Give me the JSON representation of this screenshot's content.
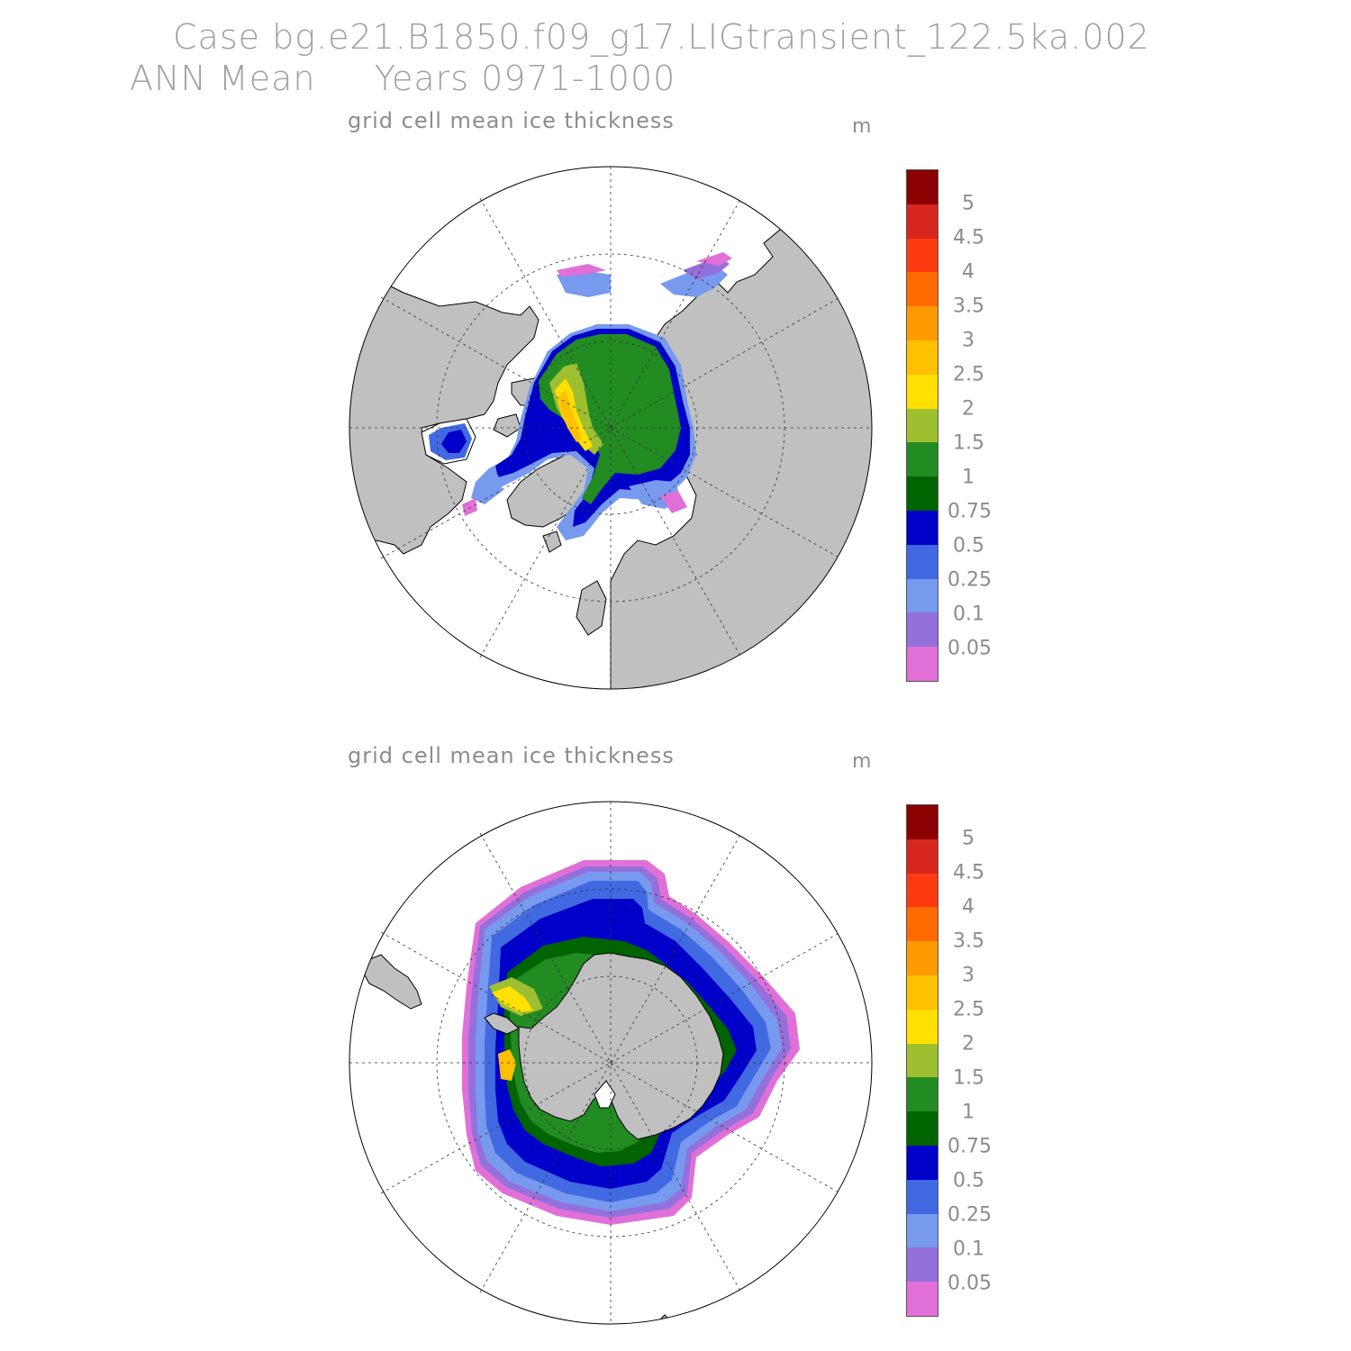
{
  "header": {
    "case_line": "Case bg.e21.B1850.f09_g17.LIGtransient_122.5ka.002",
    "period_line": "ANN Mean     Years 0971-1000"
  },
  "panels": [
    {
      "title": "grid cell mean ice thickness",
      "unit": "m"
    },
    {
      "title": "grid cell mean ice thickness",
      "unit": "m"
    }
  ],
  "colorbar": {
    "labels": [
      "5",
      "4.5",
      "4",
      "3.5",
      "3",
      "2.5",
      "2",
      "1.5",
      "1",
      "0.75",
      "0.5",
      "0.25",
      "0.1",
      "0.05"
    ],
    "colors_top_to_bottom": [
      "#8b0000",
      "#d7261e",
      "#ff3a12",
      "#ff6a00",
      "#ff9a00",
      "#ffc000",
      "#ffe000",
      "#9ebf30",
      "#228b22",
      "#006400",
      "#0000c8",
      "#4169e1",
      "#7799ee",
      "#9370db",
      "#e070d8"
    ]
  },
  "colors": {
    "land": "#c0c0c0",
    "ocean": "#ffffff",
    "grid": "#333333"
  }
}
